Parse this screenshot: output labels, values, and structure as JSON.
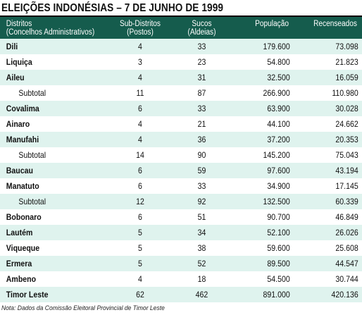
{
  "title": "ELEIÇÕES INDONÉSIAS – 7 DE JUNHO DE 1999",
  "columns": {
    "districts_line1": "Distritos",
    "districts_line2": "(Concelhos Administrativos)",
    "subdistricts_line1": "Sub-Distritos",
    "subdistricts_line2": "(Postos)",
    "sucos_line1": "Sucos",
    "sucos_line2": "(Aldeias)",
    "population": "População",
    "census": "Recenseados"
  },
  "rows": [
    {
      "name": "Dili",
      "sub": "4",
      "sucos": "33",
      "pop": "179.600",
      "cens": "73.098",
      "kind": "district"
    },
    {
      "name": "Liquiça",
      "sub": "3",
      "sucos": "23",
      "pop": "54.800",
      "cens": "21.823",
      "kind": "district"
    },
    {
      "name": "Aileu",
      "sub": "4",
      "sucos": "31",
      "pop": "32.500",
      "cens": "16.059",
      "kind": "district"
    },
    {
      "name": "Subtotal",
      "sub": "11",
      "sucos": "87",
      "pop": "266.900",
      "cens": "110.980",
      "kind": "subtotal"
    },
    {
      "name": "Covalima",
      "sub": "6",
      "sucos": "33",
      "pop": "63.900",
      "cens": "30.028",
      "kind": "district"
    },
    {
      "name": "Ainaro",
      "sub": "4",
      "sucos": "21",
      "pop": "44.100",
      "cens": "24.662",
      "kind": "district"
    },
    {
      "name": "Manufahi",
      "sub": "4",
      "sucos": "36",
      "pop": "37.200",
      "cens": "20.353",
      "kind": "district"
    },
    {
      "name": "Subtotal",
      "sub": "14",
      "sucos": "90",
      "pop": "145.200",
      "cens": "75.043",
      "kind": "subtotal"
    },
    {
      "name": "Baucau",
      "sub": "6",
      "sucos": "59",
      "pop": "97.600",
      "cens": "43.194",
      "kind": "district"
    },
    {
      "name": "Manatuto",
      "sub": "6",
      "sucos": "33",
      "pop": "34.900",
      "cens": "17.145",
      "kind": "district"
    },
    {
      "name": "Subtotal",
      "sub": "12",
      "sucos": "92",
      "pop": "132.500",
      "cens": "60.339",
      "kind": "subtotal"
    },
    {
      "name": "Bobonaro",
      "sub": "6",
      "sucos": "51",
      "pop": "90.700",
      "cens": "46.849",
      "kind": "district"
    },
    {
      "name": "Lautém",
      "sub": "5",
      "sucos": "34",
      "pop": "52.100",
      "cens": "26.026",
      "kind": "district"
    },
    {
      "name": "Viqueque",
      "sub": "5",
      "sucos": "38",
      "pop": "59.600",
      "cens": "25.608",
      "kind": "district"
    },
    {
      "name": "Ermera",
      "sub": "5",
      "sucos": "52",
      "pop": "89.500",
      "cens": "44.547",
      "kind": "district"
    },
    {
      "name": "Ambeno",
      "sub": "4",
      "sucos": "18",
      "pop": "54.500",
      "cens": "30.744",
      "kind": "district"
    },
    {
      "name": "Timor Leste",
      "sub": "62",
      "sucos": "462",
      "pop": "891.000",
      "cens": "420.136",
      "kind": "total"
    }
  ],
  "note": "Nota: Dados da Comissão Eleitoral Provincial de Timor Leste",
  "colors": {
    "header_bg": "#155c4d",
    "stripe": "#dff3ee"
  }
}
